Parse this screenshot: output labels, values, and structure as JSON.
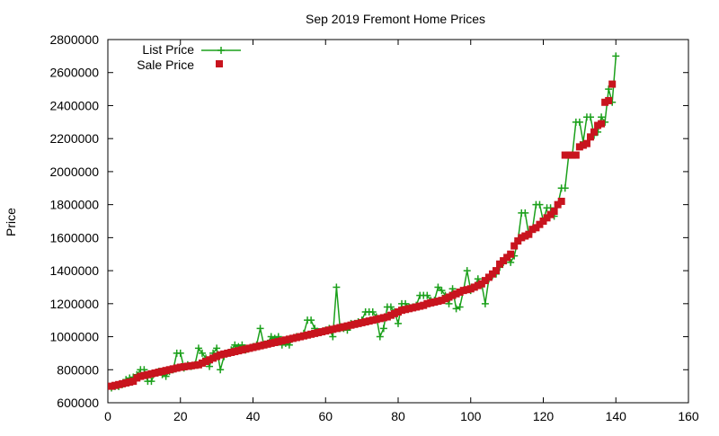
{
  "chart_data": {
    "type": "line",
    "title": "Sep 2019 Fremont Home Prices",
    "xlabel": "",
    "ylabel": "Price",
    "xlim": [
      0,
      160
    ],
    "ylim": [
      600000,
      2800000
    ],
    "x_ticks": [
      0,
      20,
      40,
      60,
      80,
      100,
      120,
      140,
      160
    ],
    "y_ticks": [
      600000,
      800000,
      1000000,
      1200000,
      1400000,
      1600000,
      1800000,
      2000000,
      2200000,
      2400000,
      2600000,
      2800000
    ],
    "grid": false,
    "legend_position": "top-left",
    "series": [
      {
        "name": "List Price",
        "style": "line-with-plus-markers",
        "color": "#1ba01b",
        "values": [
          690000,
          699000,
          699000,
          710000,
          740000,
          750000,
          755000,
          770000,
          800000,
          800000,
          730000,
          730000,
          780000,
          790000,
          770000,
          760000,
          790000,
          800000,
          900000,
          900000,
          810000,
          830000,
          820000,
          830000,
          930000,
          900000,
          870000,
          820000,
          900000,
          930000,
          800000,
          880000,
          900000,
          920000,
          950000,
          940000,
          950000,
          920000,
          930000,
          940000,
          950000,
          1050000,
          950000,
          960000,
          1000000,
          990000,
          1000000,
          950000,
          960000,
          950000,
          990000,
          1000000,
          1000000,
          1020000,
          1100000,
          1100000,
          1050000,
          1030000,
          1030000,
          1040000,
          1050000,
          1000000,
          1300000,
          1050000,
          1050000,
          1040000,
          1080000,
          1080000,
          1090000,
          1100000,
          1150000,
          1150000,
          1150000,
          1120000,
          1000000,
          1050000,
          1180000,
          1180000,
          1150000,
          1080000,
          1200000,
          1200000,
          1180000,
          1180000,
          1190000,
          1250000,
          1250000,
          1250000,
          1220000,
          1220000,
          1300000,
          1280000,
          1250000,
          1200000,
          1290000,
          1170000,
          1180000,
          1280000,
          1400000,
          1280000,
          1300000,
          1350000,
          1320000,
          1200000,
          1350000,
          1370000,
          1380000,
          1420000,
          1450000,
          1480000,
          1450000,
          1490000,
          1580000,
          1750000,
          1750000,
          1620000,
          1650000,
          1800000,
          1800000,
          1700000,
          1780000,
          1780000,
          1730000,
          1800000,
          1900000,
          1900000,
          2100000,
          2100000,
          2300000,
          2300000,
          2180000,
          2330000,
          2330000,
          2220000,
          2240000,
          2330000,
          2300000,
          2500000,
          2420000,
          2700000
        ]
      },
      {
        "name": "Sale Price",
        "style": "square-markers",
        "color": "#c8141e",
        "values": [
          700000,
          705000,
          710000,
          715000,
          720000,
          725000,
          730000,
          750000,
          760000,
          765000,
          770000,
          775000,
          780000,
          785000,
          790000,
          795000,
          800000,
          805000,
          810000,
          815000,
          818000,
          821000,
          824000,
          827000,
          830000,
          840000,
          850000,
          860000,
          870000,
          880000,
          890000,
          895000,
          900000,
          905000,
          910000,
          915000,
          920000,
          925000,
          930000,
          935000,
          940000,
          945000,
          950000,
          955000,
          960000,
          965000,
          970000,
          975000,
          980000,
          985000,
          990000,
          995000,
          1000000,
          1005000,
          1010000,
          1015000,
          1020000,
          1025000,
          1030000,
          1035000,
          1040000,
          1045000,
          1050000,
          1055000,
          1060000,
          1065000,
          1070000,
          1075000,
          1080000,
          1085000,
          1090000,
          1095000,
          1100000,
          1105000,
          1110000,
          1115000,
          1120000,
          1130000,
          1140000,
          1150000,
          1160000,
          1165000,
          1170000,
          1175000,
          1180000,
          1185000,
          1190000,
          1200000,
          1205000,
          1210000,
          1215000,
          1220000,
          1230000,
          1240000,
          1250000,
          1260000,
          1270000,
          1280000,
          1285000,
          1290000,
          1300000,
          1310000,
          1320000,
          1340000,
          1360000,
          1380000,
          1400000,
          1440000,
          1460000,
          1480000,
          1500000,
          1550000,
          1580000,
          1600000,
          1610000,
          1620000,
          1650000,
          1660000,
          1680000,
          1700000,
          1720000,
          1740000,
          1760000,
          1800000,
          1820000,
          2100000,
          2100000,
          2100000,
          2100000,
          2150000,
          2160000,
          2170000,
          2210000,
          2240000,
          2280000,
          2290000,
          2420000,
          2430000,
          2530000
        ]
      }
    ]
  }
}
